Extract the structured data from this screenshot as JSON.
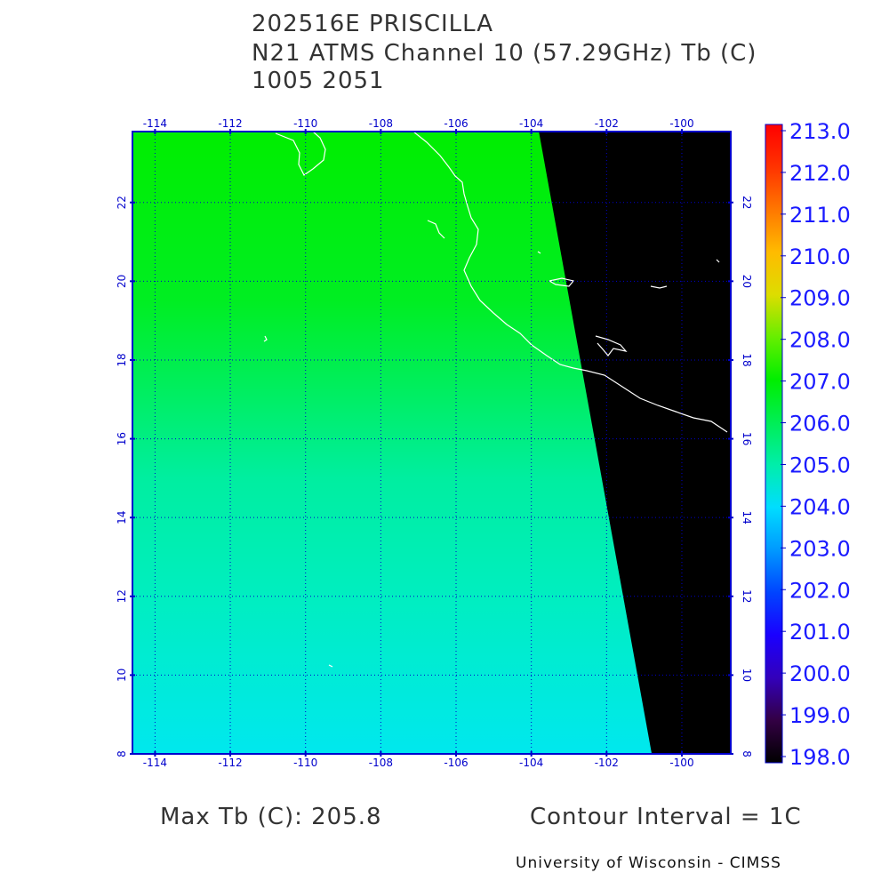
{
  "header": {
    "line1": "202516E PRISCILLA",
    "line2": "N21 ATMS Channel 10 (57.29GHz) Tb (C)",
    "line3": "1005 2051"
  },
  "map": {
    "lon_ticks": [
      "-114",
      "-112",
      "-110",
      "-108",
      "-106",
      "-104",
      "-102",
      "-100"
    ],
    "lon_values": [
      -114,
      -112,
      -110,
      -108,
      -106,
      -104,
      -102,
      -100
    ],
    "lat_ticks": [
      "8",
      "10",
      "12",
      "14",
      "16",
      "18",
      "20",
      "22"
    ],
    "lat_values": [
      8,
      10,
      12,
      14,
      16,
      18,
      20,
      22
    ],
    "lon_range": [
      -114.6,
      -98.7
    ],
    "lat_range": [
      8,
      23.8
    ],
    "swath_edge": [
      [
        -103.8,
        23.8
      ],
      [
        -100.8,
        8
      ]
    ],
    "gradient": [
      {
        "lat": 23.8,
        "color": "#00ee00"
      },
      {
        "lat": 19.5,
        "color": "#00ee22"
      },
      {
        "lat": 17.0,
        "color": "#00ee66"
      },
      {
        "lat": 15.0,
        "color": "#00eea0"
      },
      {
        "lat": 12.0,
        "color": "#00eec0"
      },
      {
        "lat": 8.0,
        "color": "#00e8ee"
      }
    ],
    "no_data_color": "#000000",
    "grid_color": "#0000cc",
    "coast_color": "#ffffff"
  },
  "colorbar": {
    "labels": [
      "213.0",
      "212.0",
      "211.0",
      "210.0",
      "209.0",
      "208.0",
      "207.0",
      "206.0",
      "205.0",
      "204.0",
      "203.0",
      "202.0",
      "201.0",
      "200.0",
      "199.0",
      "198.0"
    ],
    "colors": [
      "#ff0000",
      "#ff3300",
      "#ff7700",
      "#ffbb00",
      "#dddd00",
      "#66ee00",
      "#00ee00",
      "#00ee55",
      "#00eeaa",
      "#00ddff",
      "#0099ff",
      "#0044ff",
      "#1a00ff",
      "#3300bb",
      "#330044",
      "#000000"
    ],
    "min": 198.0,
    "max": 213.0
  },
  "footer": {
    "max_tb": "Max Tb (C): 205.8",
    "contour": "Contour Interval = 1C",
    "credit": "University of Wisconsin - CIMSS"
  }
}
